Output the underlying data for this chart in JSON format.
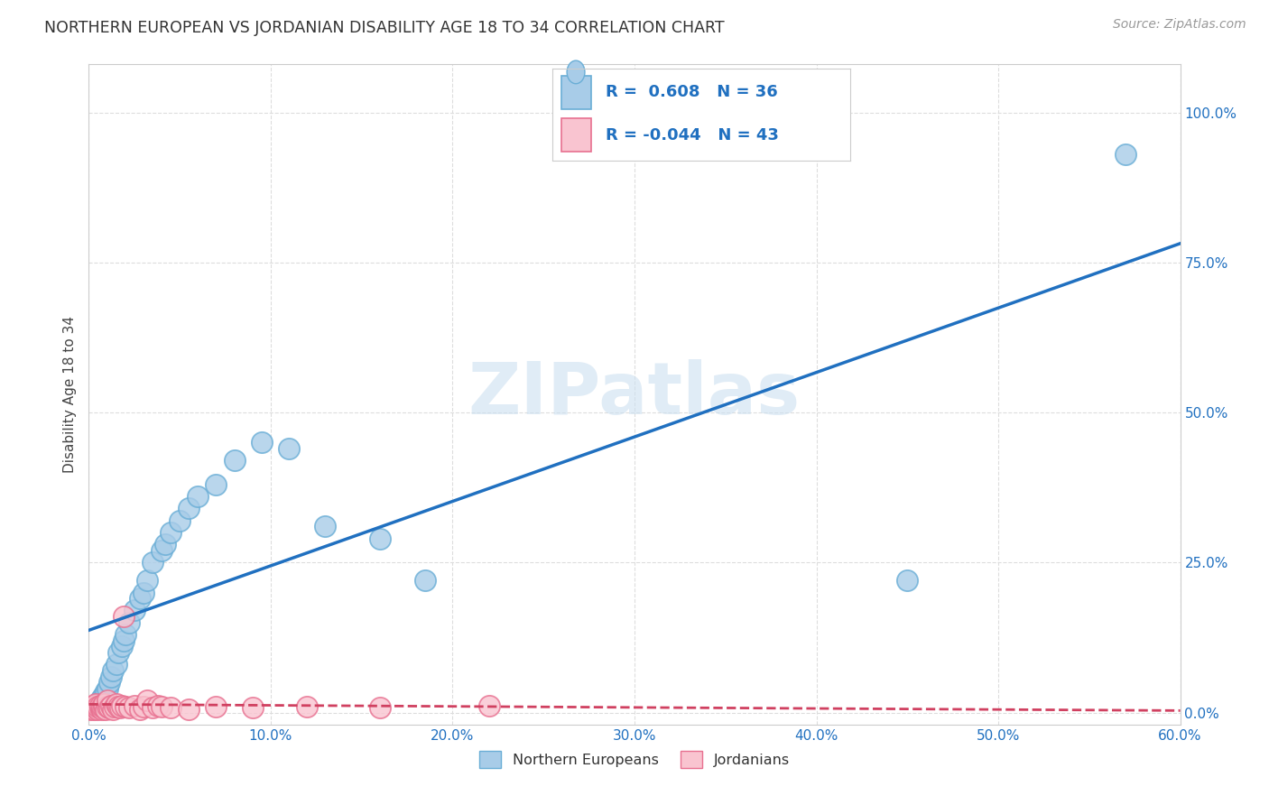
{
  "title": "NORTHERN EUROPEAN VS JORDANIAN DISABILITY AGE 18 TO 34 CORRELATION CHART",
  "source": "Source: ZipAtlas.com",
  "ylabel": "Disability Age 18 to 34",
  "xlim": [
    0.0,
    0.6
  ],
  "ylim": [
    -0.02,
    1.08
  ],
  "xtick_labels": [
    "0.0%",
    "10.0%",
    "20.0%",
    "30.0%",
    "40.0%",
    "50.0%",
    "60.0%"
  ],
  "xtick_vals": [
    0.0,
    0.1,
    0.2,
    0.3,
    0.4,
    0.5,
    0.6
  ],
  "ytick_labels": [
    "0.0%",
    "25.0%",
    "50.0%",
    "75.0%",
    "100.0%"
  ],
  "ytick_vals": [
    0.0,
    0.25,
    0.5,
    0.75,
    1.0
  ],
  "blue_color": "#a8cce8",
  "blue_edge_color": "#6aaed6",
  "pink_color": "#f9c4d0",
  "pink_edge_color": "#e87090",
  "blue_line_color": "#2070c0",
  "pink_line_color": "#d04060",
  "watermark": "ZIPatlas",
  "legend_r_blue": "0.608",
  "legend_n_blue": "36",
  "legend_r_pink": "-0.044",
  "legend_n_pink": "43",
  "blue_scatter_x": [
    0.003,
    0.005,
    0.006,
    0.007,
    0.008,
    0.009,
    0.01,
    0.011,
    0.012,
    0.013,
    0.015,
    0.016,
    0.018,
    0.019,
    0.02,
    0.022,
    0.025,
    0.028,
    0.03,
    0.032,
    0.035,
    0.04,
    0.042,
    0.045,
    0.05,
    0.055,
    0.06,
    0.07,
    0.08,
    0.095,
    0.11,
    0.13,
    0.16,
    0.185,
    0.45,
    0.57
  ],
  "blue_scatter_y": [
    0.01,
    0.015,
    0.02,
    0.025,
    0.03,
    0.035,
    0.04,
    0.05,
    0.06,
    0.07,
    0.08,
    0.1,
    0.11,
    0.12,
    0.13,
    0.15,
    0.17,
    0.19,
    0.2,
    0.22,
    0.25,
    0.27,
    0.28,
    0.3,
    0.32,
    0.34,
    0.36,
    0.38,
    0.42,
    0.45,
    0.44,
    0.31,
    0.29,
    0.22,
    0.22,
    0.93
  ],
  "pink_scatter_x": [
    0.001,
    0.002,
    0.002,
    0.003,
    0.003,
    0.004,
    0.004,
    0.005,
    0.005,
    0.006,
    0.006,
    0.007,
    0.007,
    0.008,
    0.008,
    0.009,
    0.01,
    0.01,
    0.011,
    0.012,
    0.013,
    0.014,
    0.015,
    0.016,
    0.017,
    0.018,
    0.019,
    0.02,
    0.022,
    0.025,
    0.028,
    0.03,
    0.032,
    0.035,
    0.038,
    0.04,
    0.045,
    0.055,
    0.07,
    0.09,
    0.12,
    0.16,
    0.22
  ],
  "pink_scatter_y": [
    0.005,
    0.008,
    0.01,
    0.005,
    0.012,
    0.008,
    0.015,
    0.005,
    0.01,
    0.008,
    0.012,
    0.006,
    0.01,
    0.008,
    0.015,
    0.005,
    0.01,
    0.02,
    0.008,
    0.012,
    0.005,
    0.01,
    0.015,
    0.01,
    0.008,
    0.012,
    0.16,
    0.01,
    0.008,
    0.012,
    0.005,
    0.01,
    0.02,
    0.008,
    0.012,
    0.01,
    0.008,
    0.005,
    0.01,
    0.008,
    0.01,
    0.008,
    0.012
  ],
  "background_color": "#ffffff",
  "grid_color": "#dddddd"
}
